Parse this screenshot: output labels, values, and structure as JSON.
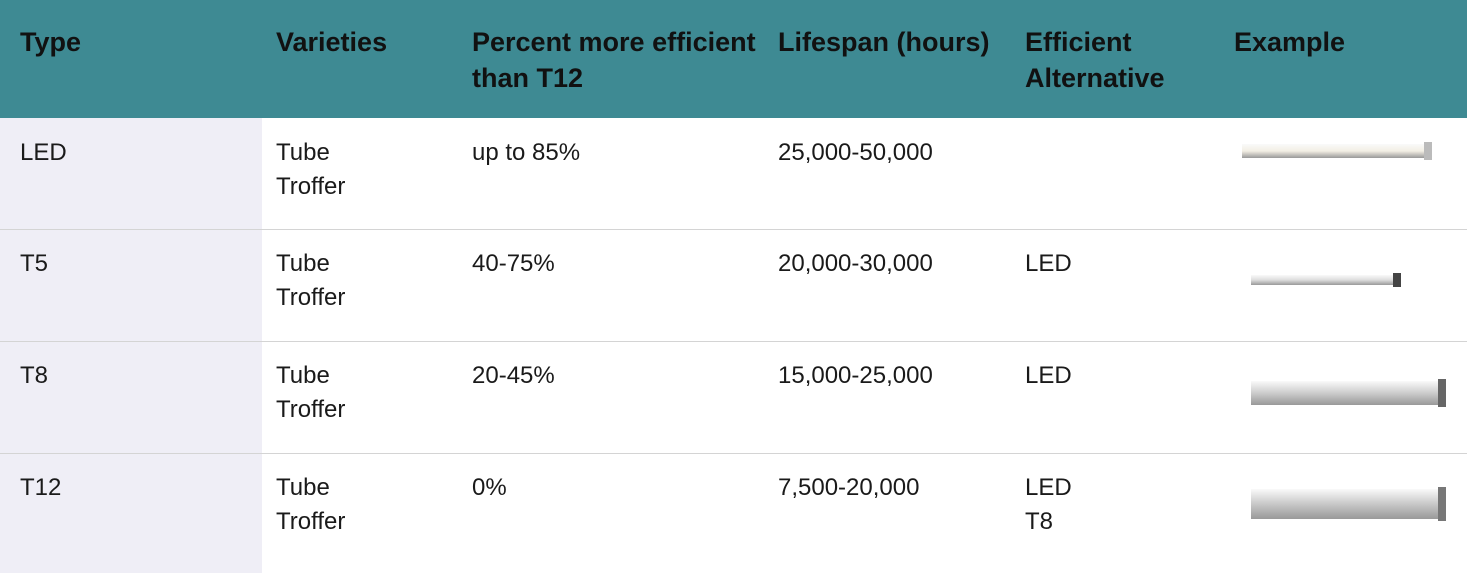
{
  "table": {
    "headers": [
      "Type",
      "Varieties",
      "Percent more efficient than T12",
      "Lifespan (hours)",
      "Efficient Alternative",
      "Example"
    ],
    "rows": [
      {
        "type": "LED",
        "varieties": [
          "Tube",
          "Troffer"
        ],
        "efficiency": "up to 85%",
        "lifespan": "25,000-50,000",
        "alternative": []
      },
      {
        "type": "T5",
        "varieties": [
          "Tube",
          "Troffer"
        ],
        "efficiency": "40-75%",
        "lifespan": "20,000-30,000",
        "alternative": [
          "LED"
        ]
      },
      {
        "type": "T8",
        "varieties": [
          "Tube",
          "Troffer"
        ],
        "efficiency": "20-45%",
        "lifespan": "15,000-25,000",
        "alternative": [
          "LED"
        ]
      },
      {
        "type": "T12",
        "varieties": [
          "Tube",
          "Troffer"
        ],
        "efficiency": "0%",
        "lifespan": "7,500-20,000",
        "alternative": [
          "LED",
          "T8"
        ]
      }
    ]
  }
}
